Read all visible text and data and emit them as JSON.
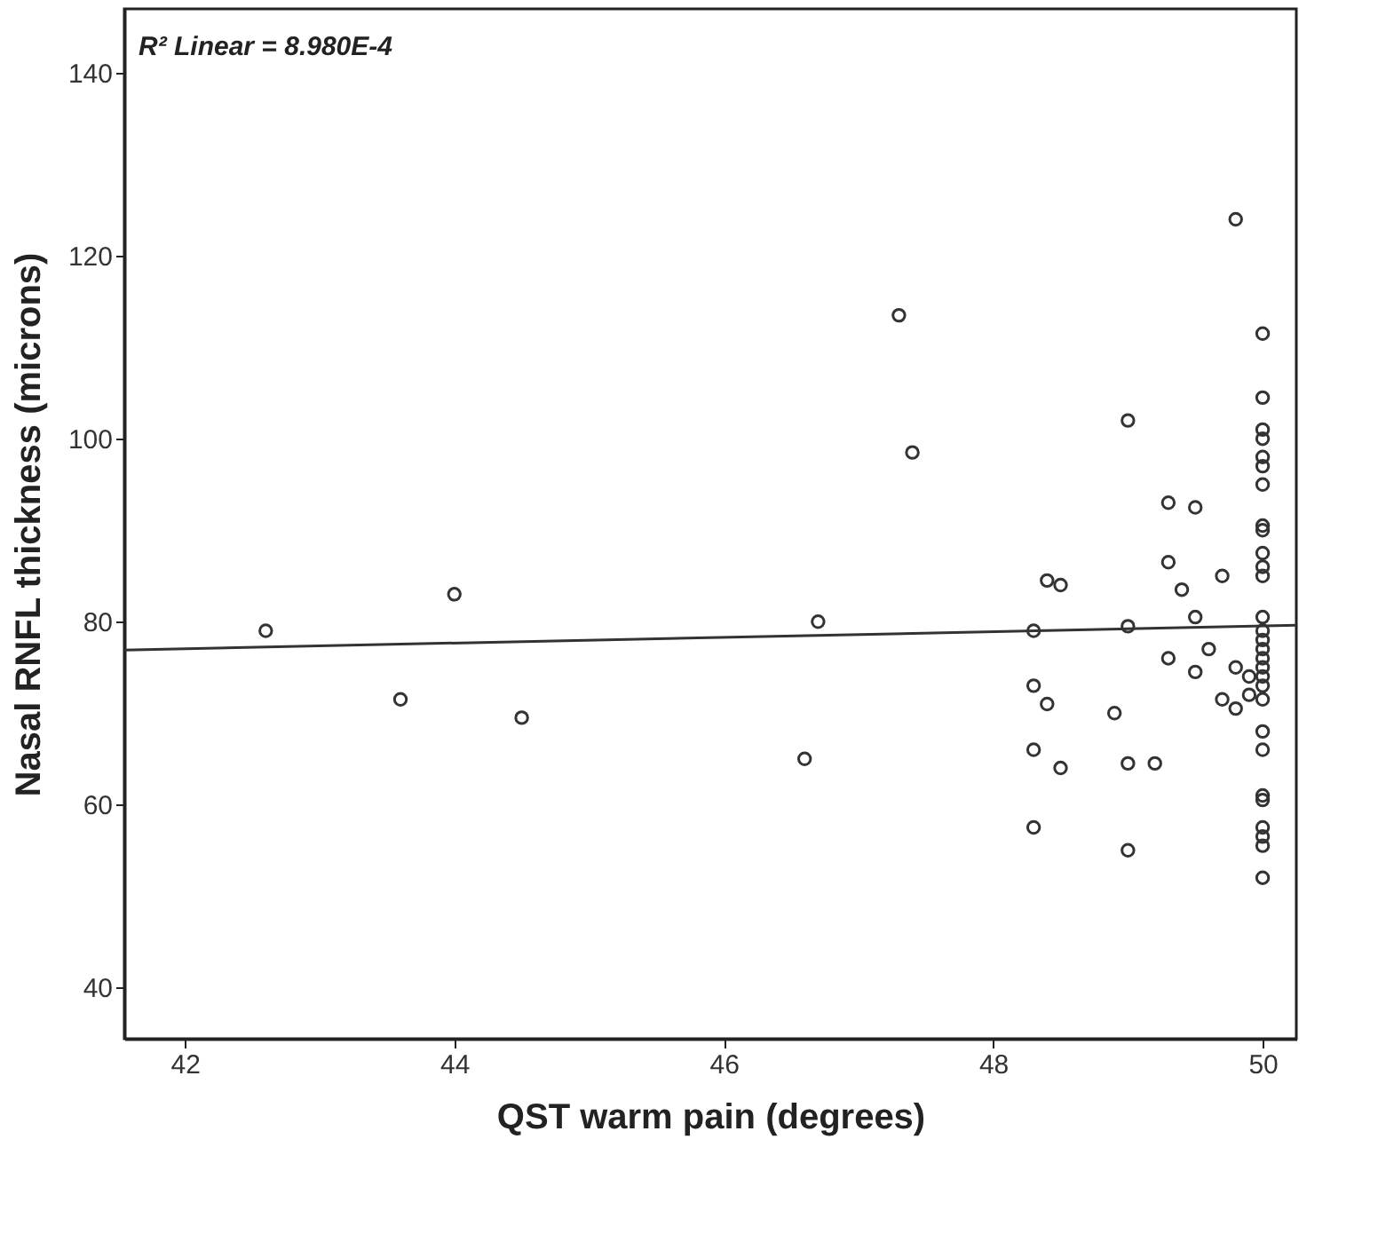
{
  "chart_data": {
    "type": "scatter",
    "xlabel": "QST warm pain (degrees)",
    "ylabel": "Nasal RNFL thickness (microns)",
    "annotations": [
      "R² Linear = 8.980E-4"
    ],
    "xlim": [
      41.55,
      50.25
    ],
    "xticks": [
      42,
      44,
      46,
      48,
      50
    ],
    "ylim": [
      34.4,
      147
    ],
    "yticks": [
      40,
      60,
      80,
      100,
      120,
      140
    ],
    "grid": false,
    "marker": "circle",
    "series": [
      {
        "color": "#333333",
        "x": [
          42.6,
          43.6,
          44.0,
          44.5,
          46.6,
          46.7,
          47.3,
          47.4,
          48.3,
          48.3,
          48.4,
          48.4,
          48.5,
          48.3,
          48.5,
          48.3,
          48.9,
          49.0,
          49.0,
          49.0,
          49.0,
          49.2,
          49.3,
          49.3,
          49.3,
          49.4,
          49.5,
          49.5,
          49.5,
          49.6,
          49.7,
          49.7,
          49.8,
          49.8,
          49.8,
          49.9,
          49.9,
          50,
          50,
          50,
          50,
          50,
          50,
          50,
          50,
          50,
          50,
          50,
          50,
          50,
          50,
          50,
          50,
          50,
          50,
          50,
          50,
          50,
          50,
          50,
          50,
          50,
          50,
          50,
          50,
          50
        ],
        "values": [
          79,
          71.5,
          83,
          69.5,
          65,
          80,
          113.5,
          98.5,
          79,
          73,
          71,
          84.5,
          84,
          66,
          64,
          57.5,
          70,
          102,
          79.5,
          64.5,
          55,
          64.5,
          93,
          86.5,
          76,
          83.5,
          92.5,
          80.5,
          74.5,
          77,
          85,
          71.5,
          124,
          75,
          70.5,
          74,
          72,
          111.5,
          104.5,
          101,
          100,
          98,
          97,
          95,
          90.5,
          90,
          87.5,
          86,
          85,
          80.5,
          79,
          78,
          77,
          76,
          75,
          74,
          73,
          71.5,
          68,
          66,
          61,
          60.5,
          57.5,
          56.5,
          55.5,
          52
        ]
      },
      {
        "type": "line",
        "color": "#333333",
        "line_style": "solid",
        "marker": "none",
        "x": [
          41.55,
          50.25
        ],
        "values": [
          76.9,
          79.6
        ]
      }
    ]
  }
}
